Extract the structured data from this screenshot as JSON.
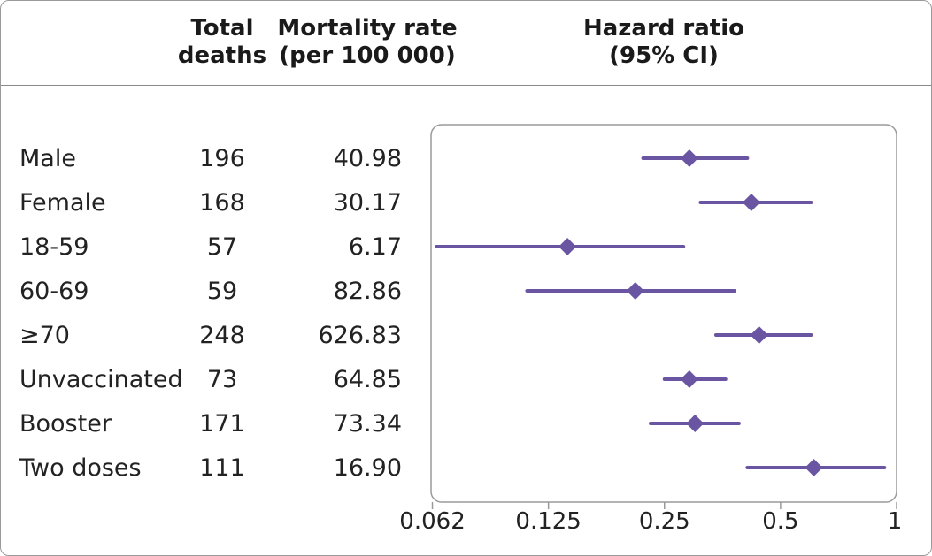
{
  "header": {
    "col_deaths_line1": "Total",
    "col_deaths_line2": "deaths",
    "col_rate_line1": "Mortality rate",
    "col_rate_line2": "(per 100 000)",
    "col_hr_line1": "Hazard ratio",
    "col_hr_line2": "(95% CI)"
  },
  "rows": [
    {
      "label": "Male",
      "deaths": "196",
      "rate": "40.98"
    },
    {
      "label": "Female",
      "deaths": "168",
      "rate": "30.17"
    },
    {
      "label": "18-59",
      "deaths": "57",
      "rate": "6.17"
    },
    {
      "label": "60-69",
      "deaths": "59",
      "rate": "82.86"
    },
    {
      "label": "≥70",
      "deaths": "248",
      "rate": "626.83"
    },
    {
      "label": "Unvaccinated",
      "deaths": "73",
      "rate": "64.85"
    },
    {
      "label": "Booster",
      "deaths": "171",
      "rate": "73.34"
    },
    {
      "label": "Two doses",
      "deaths": "111",
      "rate": "16.90"
    }
  ],
  "chart_data": {
    "type": "forest",
    "title": "Hazard ratio (95% CI)",
    "xscale": "log2",
    "xlim": [
      0.062,
      1
    ],
    "ticks": [
      0.0625,
      0.125,
      0.25,
      0.5,
      1
    ],
    "tick_labels": [
      "0.062",
      "0.125",
      "0.25",
      "0.5",
      "1"
    ],
    "marker_color": "#6a55a3",
    "series": [
      {
        "category": "Male",
        "hr": 0.29,
        "lower": 0.22,
        "upper": 0.41
      },
      {
        "category": "Female",
        "hr": 0.42,
        "lower": 0.31,
        "upper": 0.6
      },
      {
        "category": "18-59",
        "hr": 0.14,
        "lower": 0.064,
        "upper": 0.28
      },
      {
        "category": "60-69",
        "hr": 0.21,
        "lower": 0.11,
        "upper": 0.38
      },
      {
        "category": "≥70",
        "hr": 0.44,
        "lower": 0.34,
        "upper": 0.6
      },
      {
        "category": "Unvaccinated",
        "hr": 0.29,
        "lower": 0.25,
        "upper": 0.36
      },
      {
        "category": "Booster",
        "hr": 0.3,
        "lower": 0.23,
        "upper": 0.39
      },
      {
        "category": "Two doses",
        "hr": 0.61,
        "lower": 0.41,
        "upper": 0.93
      }
    ]
  }
}
